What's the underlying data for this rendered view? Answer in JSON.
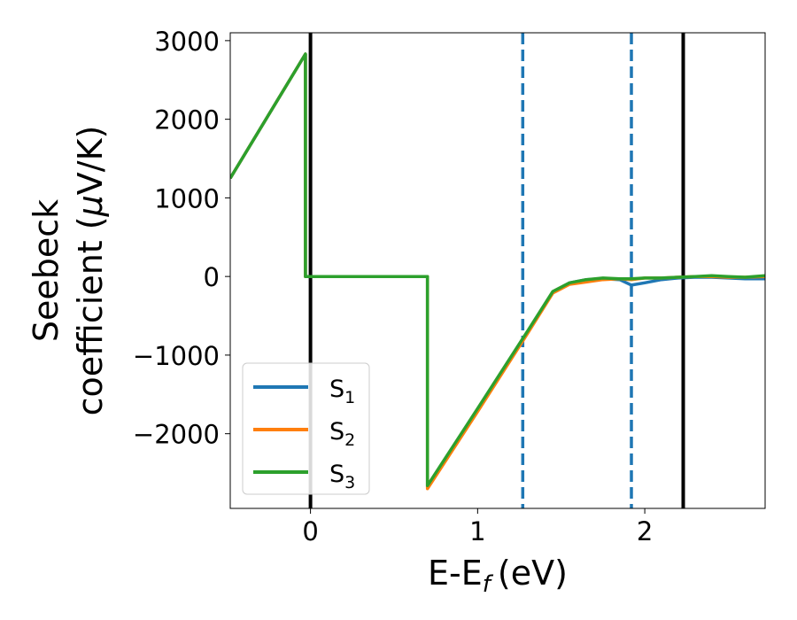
{
  "chart_data": {
    "type": "line",
    "xlabel": "E-E",
    "xlabel_sub": "f",
    "xlabel_unit": "(eV)",
    "ylabel_line1": "Seebeck",
    "ylabel_line2_pre": "coefficient  (",
    "ylabel_mu": "μ",
    "ylabel_line2_post": "V/K)",
    "xlim": [
      -0.48,
      2.72
    ],
    "ylim": [
      -2950,
      3100
    ],
    "xticks": [
      0,
      1,
      2
    ],
    "xtick_labels": [
      "0",
      "1",
      "2"
    ],
    "yticks": [
      3000,
      2000,
      1000,
      0,
      -1000,
      -2000
    ],
    "ytick_labels": [
      "3000",
      "2000",
      "1000",
      "0",
      "−1000",
      "−2000"
    ],
    "grid": false,
    "legend_position": "lower-left",
    "vlines": [
      {
        "x": 0.0,
        "style": "solid",
        "color": "#000000"
      },
      {
        "x": 1.27,
        "style": "dashed",
        "color": "#1f77b4"
      },
      {
        "x": 1.92,
        "style": "dashed",
        "color": "#1f77b4"
      },
      {
        "x": 2.23,
        "style": "solid",
        "color": "#000000"
      }
    ],
    "series": [
      {
        "name": "S",
        "sub": "1",
        "color": "#1f77b4",
        "x": [
          -0.48,
          -0.03,
          -0.03,
          0.7,
          0.7,
          1.0,
          1.3,
          1.45,
          1.55,
          1.65,
          1.75,
          1.85,
          1.92,
          2.0,
          2.1,
          2.2,
          2.3,
          2.4,
          2.5,
          2.6,
          2.72
        ],
        "y": [
          1250,
          2830,
          0,
          0,
          -2680,
          -1700,
          -700,
          -200,
          -80,
          -40,
          -30,
          -40,
          -110,
          -80,
          -40,
          -20,
          -10,
          -10,
          -20,
          -30,
          -30
        ]
      },
      {
        "name": "S",
        "sub": "2",
        "color": "#ff7f0e",
        "x": [
          -0.48,
          -0.03,
          -0.03,
          0.7,
          0.7,
          1.0,
          1.3,
          1.45,
          1.55,
          1.65,
          1.75,
          1.85,
          1.92,
          2.0,
          2.1,
          2.2,
          2.3,
          2.4,
          2.5,
          2.6,
          2.72
        ],
        "y": [
          1250,
          2830,
          0,
          0,
          -2700,
          -1720,
          -720,
          -210,
          -100,
          -70,
          -40,
          -30,
          -40,
          -20,
          -20,
          -10,
          0,
          0,
          -10,
          -10,
          0
        ]
      },
      {
        "name": "S",
        "sub": "3",
        "color": "#2ca02c",
        "x": [
          -0.48,
          -0.03,
          -0.03,
          0.7,
          0.7,
          1.0,
          1.3,
          1.45,
          1.55,
          1.65,
          1.75,
          1.85,
          1.92,
          2.0,
          2.1,
          2.2,
          2.3,
          2.4,
          2.5,
          2.6,
          2.72
        ],
        "y": [
          1250,
          2830,
          0,
          0,
          -2660,
          -1680,
          -690,
          -190,
          -80,
          -40,
          -20,
          -30,
          -30,
          -20,
          -20,
          -10,
          0,
          10,
          0,
          -10,
          10
        ]
      }
    ]
  }
}
